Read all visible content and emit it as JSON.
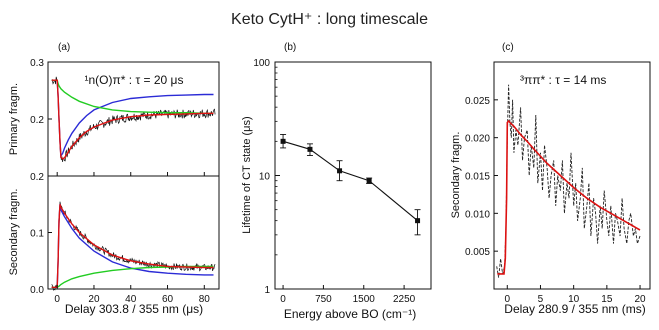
{
  "title": "Keto CytH⁺ : long timescale",
  "chart_data": [
    {
      "id": "a",
      "type": "line",
      "panel_label": "(a)",
      "annotation": "¹n(O)π* : τ = 20 μs",
      "xlabel": "Delay 303.8 / 355 nm (μs)",
      "xlim": [
        -5,
        88
      ],
      "xticks": [
        0,
        20,
        40,
        60,
        80
      ],
      "top": {
        "ylabel": "Primary fragm.",
        "ylim": [
          0.1,
          0.3
        ],
        "yticks": [
          "0.2",
          "0.3"
        ],
        "series": [
          {
            "color": "#2b2bd6",
            "x": [
              -3,
              0,
              0.5,
              1,
              1.5,
              2,
              3,
              4,
              6,
              8,
              12,
              16,
              20,
              30,
              40,
              50,
              60,
              70,
              80,
              85
            ],
            "y": [
              0.268,
              0.268,
              0.24,
              0.2,
              0.16,
              0.135,
              0.14,
              0.149,
              0.163,
              0.175,
              0.193,
              0.206,
              0.216,
              0.229,
              0.236,
              0.239,
              0.241,
              0.242,
              0.243,
              0.243
            ]
          },
          {
            "color": "#22cc22",
            "x": [
              -3,
              0,
              0.5,
              1,
              2,
              4,
              8,
              12,
              20,
              30,
              40,
              50,
              60,
              70,
              80,
              85
            ],
            "y": [
              0.268,
              0.268,
              0.262,
              0.258,
              0.253,
              0.247,
              0.238,
              0.231,
              0.222,
              0.216,
              0.213,
              0.212,
              0.211,
              0.211,
              0.21,
              0.21
            ]
          },
          {
            "color": "#dd1111",
            "x": [
              -3,
              0,
              0.5,
              1,
              1.5,
              2,
              3,
              4,
              6,
              8,
              12,
              16,
              20,
              30,
              40,
              50,
              60,
              70,
              80,
              85
            ],
            "y": [
              0.268,
              0.268,
              0.24,
              0.2,
              0.16,
              0.133,
              0.13,
              0.132,
              0.142,
              0.152,
              0.167,
              0.178,
              0.186,
              0.198,
              0.204,
              0.207,
              0.208,
              0.209,
              0.21,
              0.21
            ]
          }
        ],
        "noisy_trace": {
          "color": "#111111",
          "x_start": -3,
          "x_end": 86,
          "noise": 0.008
        }
      },
      "bottom": {
        "ylabel": "Secondary fragm.",
        "ylim": [
          0.0,
          0.2
        ],
        "yticks": [
          "0.0",
          "0.1",
          "0.2"
        ],
        "series": [
          {
            "color": "#2b2bd6",
            "x": [
              -3,
              0,
              0.5,
              1,
              1.5,
              2,
              4,
              8,
              12,
              20,
              30,
              40,
              50,
              60,
              70,
              80,
              85
            ],
            "y": [
              0.003,
              0.003,
              0.05,
              0.12,
              0.15,
              0.14,
              0.128,
              0.107,
              0.09,
              0.067,
              0.048,
              0.037,
              0.031,
              0.028,
              0.026,
              0.025,
              0.025
            ]
          },
          {
            "color": "#22cc22",
            "x": [
              -3,
              0,
              1,
              2,
              4,
              8,
              12,
              20,
              30,
              40,
              50,
              60,
              70,
              80,
              85
            ],
            "y": [
              0.003,
              0.003,
              0.005,
              0.008,
              0.012,
              0.018,
              0.022,
              0.028,
              0.033,
              0.036,
              0.038,
              0.039,
              0.04,
              0.04,
              0.04
            ]
          },
          {
            "color": "#dd1111",
            "x": [
              -3,
              0,
              0.5,
              1,
              1.5,
              2,
              4,
              8,
              12,
              20,
              30,
              40,
              50,
              60,
              70,
              80,
              85
            ],
            "y": [
              0.003,
              0.003,
              0.05,
              0.12,
              0.15,
              0.145,
              0.134,
              0.115,
              0.1,
              0.078,
              0.06,
              0.05,
              0.044,
              0.04,
              0.039,
              0.038,
              0.038
            ]
          }
        ],
        "noisy_trace": {
          "color": "#111111",
          "x_start": -3,
          "x_end": 86,
          "noise": 0.006
        }
      }
    },
    {
      "id": "b",
      "type": "line",
      "panel_label": "(b)",
      "xlabel": "Energy above BO (cm⁻¹)",
      "ylabel": "Lifetime of CT state (μs)",
      "y_scale": "log",
      "xlim": [
        -150,
        2750
      ],
      "ylim": [
        1,
        100
      ],
      "xticks": [
        0,
        750,
        1500,
        2250
      ],
      "xtick_labels": [
        "0",
        "750",
        "1500",
        "2250"
      ],
      "yticks": [
        1,
        10,
        100
      ],
      "ytick_labels": [
        "1",
        "10",
        "100"
      ],
      "points": [
        {
          "x": 0,
          "y": 20,
          "err_low": 17.5,
          "err_high": 23
        },
        {
          "x": 500,
          "y": 17,
          "err_low": 15,
          "err_high": 19
        },
        {
          "x": 1050,
          "y": 11,
          "err_low": 9,
          "err_high": 13.5
        },
        {
          "x": 1600,
          "y": 9,
          "err_low": 8.5,
          "err_high": 9.5
        },
        {
          "x": 2500,
          "y": 4,
          "err_low": 3,
          "err_high": 5
        }
      ]
    },
    {
      "id": "c",
      "type": "line",
      "panel_label": "(c)",
      "annotation": "³ππ* : τ = 14 ms",
      "xlabel": "Delay  280.9 / 355 nm (ms)",
      "ylabel": "Secondary fragm.",
      "xlim": [
        -2,
        21.5
      ],
      "ylim": [
        0.0,
        0.03
      ],
      "xticks": [
        0,
        5,
        10,
        15,
        20
      ],
      "yticks": [
        0.005,
        0.01,
        0.015,
        0.02,
        0.025
      ],
      "ytick_labels": [
        "0.005",
        "0.010",
        "0.015",
        "0.020",
        "0.025"
      ],
      "fit": {
        "color": "#dd1111",
        "x": [
          -1.5,
          -0.5,
          -0.3,
          -0.1,
          0,
          0.2,
          0.5,
          1,
          2,
          3,
          4,
          6,
          8,
          10,
          12,
          14,
          16,
          18,
          20
        ],
        "y": [
          0.002,
          0.002,
          0.004,
          0.012,
          0.022,
          0.0222,
          0.0219,
          0.0215,
          0.0204,
          0.0195,
          0.0185,
          0.0166,
          0.015,
          0.0134,
          0.012,
          0.0108,
          0.0098,
          0.0088,
          0.0078
        ]
      },
      "trace": {
        "color": "#222222",
        "x": [
          -1.6,
          -1.3,
          -1,
          -0.7,
          -0.4,
          -0.2,
          0,
          0.2,
          0.4,
          0.6,
          0.8,
          1,
          1.3,
          1.6,
          2,
          2.3,
          2.6,
          3,
          3.3,
          3.6,
          4,
          4.3,
          4.6,
          5,
          5.3,
          5.6,
          6,
          6.3,
          6.6,
          7,
          7.3,
          7.6,
          8,
          8.3,
          8.6,
          9,
          9.3,
          9.6,
          10,
          10.3,
          10.6,
          11,
          11.3,
          11.6,
          12,
          12.3,
          12.6,
          13,
          13.3,
          13.6,
          14,
          14.3,
          14.6,
          15,
          15.3,
          15.6,
          16,
          16.3,
          16.6,
          17,
          17.3,
          17.6,
          18,
          18.3,
          18.6,
          19,
          19.3,
          19.6,
          20
        ],
        "y": [
          0.003,
          0.0015,
          0.004,
          0.002,
          0.003,
          0.008,
          0.02,
          0.027,
          0.022,
          0.02,
          0.025,
          0.018,
          0.021,
          0.019,
          0.024,
          0.017,
          0.02,
          0.021,
          0.015,
          0.019,
          0.016,
          0.023,
          0.014,
          0.018,
          0.013,
          0.019,
          0.016,
          0.012,
          0.015,
          0.017,
          0.011,
          0.015,
          0.013,
          0.017,
          0.01,
          0.014,
          0.012,
          0.018,
          0.011,
          0.014,
          0.009,
          0.012,
          0.016,
          0.008,
          0.011,
          0.014,
          0.007,
          0.012,
          0.01,
          0.006,
          0.011,
          0.008,
          0.013,
          0.009,
          0.007,
          0.011,
          0.006,
          0.01,
          0.009,
          0.007,
          0.012,
          0.008,
          0.006,
          0.009,
          0.01,
          0.007,
          0.008,
          0.006,
          0.007
        ]
      }
    }
  ]
}
